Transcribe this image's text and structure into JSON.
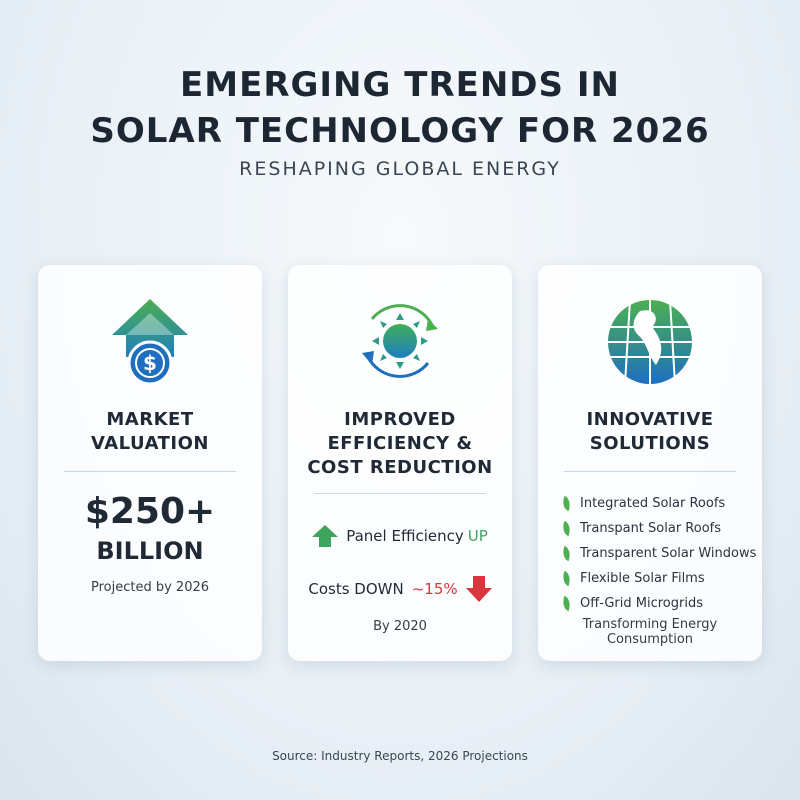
{
  "header": {
    "title_line1": "EMERGING TRENDS IN",
    "title_line2": "SOLAR TECHNOLOGY FOR 2026",
    "subtitle": "RESHAPING GLOBAL ENERGY"
  },
  "cards": [
    {
      "icon": "dollar-arrow-up-icon",
      "heading_line1": "MARKET",
      "heading_line2": "VALUATION",
      "value": "$250+",
      "unit": "BILLION",
      "note": "Projected by 2026"
    },
    {
      "icon": "sun-cycle-icon",
      "heading_line1": "IMPROVED",
      "heading_line2": "EFFICIENCY &",
      "heading_line3": "COST REDUCTION",
      "efficiency_label": "Panel Efficiency",
      "efficiency_trend": "UP",
      "cost_label": "Costs DOWN",
      "cost_value": "~15%",
      "note": "By 2020"
    },
    {
      "icon": "solar-globe-icon",
      "heading_line1": "INNOVATIVE",
      "heading_line2": "SOLUTIONS",
      "items": [
        "Integrated Solar Roofs",
        "Transpant Solar Roofs",
        "Transparent Solar Windows",
        "Flexible Solar Films",
        "Off-Grid Microgrids"
      ],
      "note": "Transforming Energy Consumption"
    }
  ],
  "colors": {
    "green": "#4caf50",
    "blue": "#1e6fc0",
    "red": "#d9363e"
  },
  "footer": {
    "source": "Source: Industry Reports, 2026 Projections"
  }
}
